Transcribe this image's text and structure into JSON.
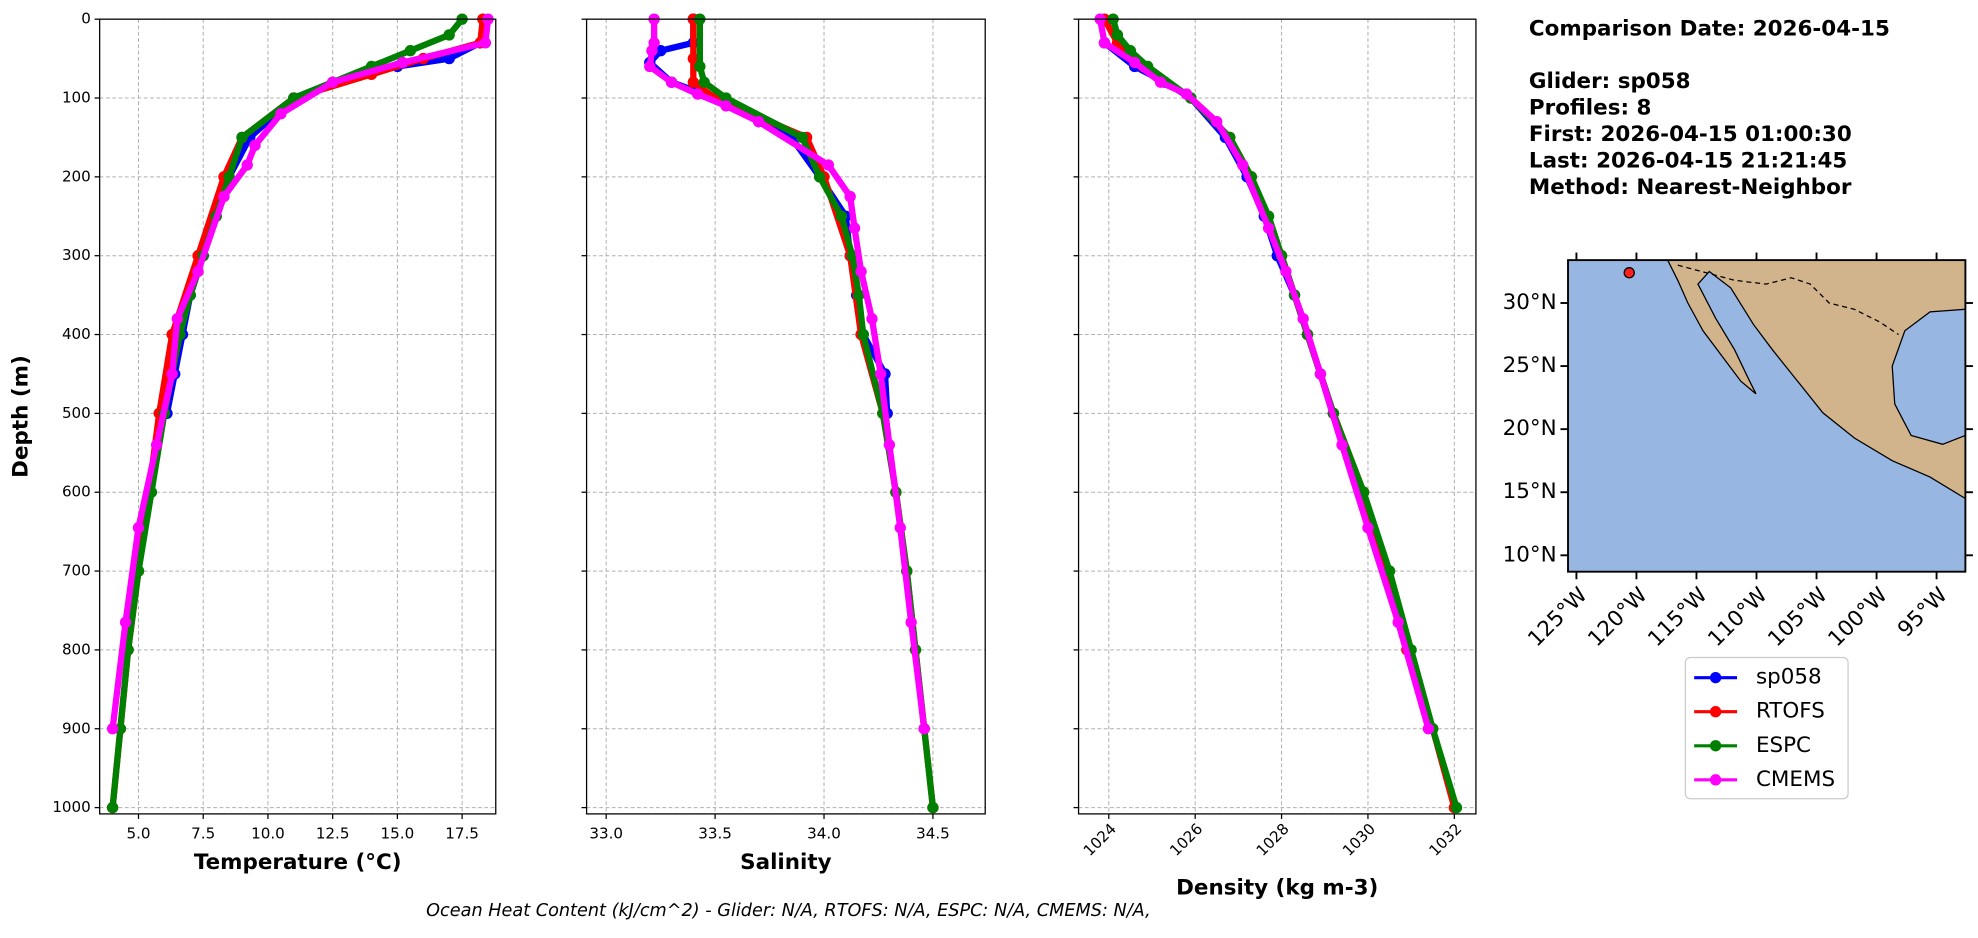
{
  "chart_data": [
    {
      "type": "line",
      "xlabel": "Temperature (°C)",
      "ylabel": "Depth (m)",
      "show_ytick_labels": true,
      "invert_y": true,
      "grid": true,
      "xlim": [
        3.5,
        18.8
      ],
      "ylim": [
        0,
        1008
      ],
      "xticks": [
        {
          "value": 5,
          "label": "5.0"
        },
        7.5,
        {
          "value": 10,
          "label": "10.0"
        },
        12.5,
        {
          "value": 15,
          "label": "15.0"
        },
        17.5
      ],
      "yticks": [
        0,
        100,
        200,
        300,
        400,
        500,
        600,
        700,
        800,
        900,
        1000
      ],
      "series": [
        {
          "color": "#0000ff",
          "x": [
            18.2,
            17,
            15,
            12.5,
            11,
            9.3,
            8.5,
            8,
            7.5,
            7,
            6.7,
            6.4,
            6.1
          ],
          "y": [
            30,
            50,
            60,
            80,
            100,
            150,
            200,
            250,
            300,
            350,
            400,
            450,
            500
          ]
        },
        {
          "color": "#ff0000",
          "x": [
            18.3,
            18.2,
            16,
            14,
            11,
            9,
            8.3,
            7.3,
            6.3,
            5.8,
            5.4,
            5.0,
            4.6,
            4.3,
            4.0
          ],
          "y": [
            0,
            30,
            50,
            70,
            100,
            150,
            200,
            300,
            400,
            500,
            600,
            700,
            800,
            900,
            1000
          ]
        },
        {
          "color": "#008000",
          "x": [
            17.5,
            17,
            15.5,
            14,
            11,
            9,
            8.5,
            8,
            7.5,
            7,
            6.6,
            6,
            5.5,
            5,
            4.6,
            4.3,
            4.0
          ],
          "y": [
            0,
            20,
            40,
            60,
            100,
            150,
            200,
            250,
            300,
            350,
            400,
            500,
            600,
            700,
            800,
            900,
            1000
          ]
        },
        {
          "color": "#ff00ff",
          "x": [
            18.5,
            18.4,
            15.2,
            12.5,
            10.5,
            9.5,
            9.2,
            8.3,
            7.3,
            6.5,
            6.3,
            5.7,
            5.0,
            4.5,
            4.0
          ],
          "y": [
            0,
            30,
            55,
            80,
            120,
            160,
            185,
            225,
            320,
            380,
            450,
            540,
            645,
            765,
            900
          ]
        }
      ]
    },
    {
      "type": "line",
      "xlabel": "Salinity",
      "show_ytick_labels": false,
      "invert_y": true,
      "grid": true,
      "xlim": [
        32.91,
        34.74
      ],
      "ylim": [
        0,
        1008
      ],
      "xticks": [
        {
          "value": 33,
          "label": "33.0"
        },
        33.5,
        {
          "value": 34,
          "label": "34.0"
        },
        34.5
      ],
      "yticks": [
        0,
        100,
        200,
        300,
        400,
        500,
        600,
        700,
        800,
        900,
        1000
      ],
      "series": [
        {
          "color": "#0000ff",
          "x": [
            33.4,
            33.4,
            33.25,
            33.2,
            33.3,
            33.5,
            33.7,
            33.85,
            33.98,
            34.1,
            34.12,
            34.15,
            34.18,
            34.28,
            34.29
          ],
          "y": [
            0,
            30,
            40,
            55,
            80,
            100,
            130,
            150,
            200,
            250,
            300,
            350,
            400,
            450,
            500
          ]
        },
        {
          "color": "#ff0000",
          "x": [
            33.4,
            33.4,
            33.4,
            33.5,
            33.92,
            34.0,
            34.12,
            34.17,
            34.27,
            34.33,
            34.38,
            34.42,
            34.46,
            34.5
          ],
          "y": [
            0,
            50,
            80,
            100,
            150,
            200,
            300,
            400,
            500,
            600,
            700,
            800,
            900,
            1000
          ]
        },
        {
          "color": "#008000",
          "x": [
            33.43,
            33.43,
            33.45,
            33.55,
            33.9,
            33.98,
            34.08,
            34.13,
            34.16,
            34.18,
            34.27,
            34.33,
            34.38,
            34.42,
            34.46,
            34.5
          ],
          "y": [
            0,
            60,
            80,
            100,
            150,
            200,
            250,
            300,
            350,
            400,
            500,
            600,
            700,
            800,
            900,
            1000
          ]
        },
        {
          "color": "#ff00ff",
          "x": [
            33.22,
            33.22,
            33.21,
            33.2,
            33.3,
            33.42,
            33.55,
            33.7,
            34.02,
            34.12,
            34.14,
            34.17,
            34.22,
            34.26,
            34.3,
            34.35,
            34.4,
            34.46
          ],
          "y": [
            0,
            30,
            40,
            60,
            80,
            95,
            110,
            130,
            185,
            225,
            265,
            320,
            380,
            450,
            540,
            645,
            765,
            900
          ]
        }
      ]
    },
    {
      "type": "line",
      "xlabel": "Density (kg m-3)",
      "show_ytick_labels": false,
      "invert_y": true,
      "grid": true,
      "rotate_xtick_labels": true,
      "xlim": [
        1023.3,
        1032.5
      ],
      "ylim": [
        0,
        1008
      ],
      "xticks": [
        1024,
        1026,
        1028,
        1030,
        1032
      ],
      "yticks": [
        0,
        100,
        200,
        300,
        400,
        500,
        600,
        700,
        800,
        900,
        1000
      ],
      "series": [
        {
          "color": "#0000ff",
          "x": [
            1023.9,
            1024.6,
            1025.3,
            1025.9,
            1026.7,
            1027.2,
            1027.6,
            1027.9,
            1028.3,
            1028.6,
            1028.9,
            1029.2
          ],
          "y": [
            30,
            60,
            80,
            100,
            150,
            200,
            250,
            300,
            350,
            400,
            450,
            500
          ]
        },
        {
          "color": "#ff0000",
          "x": [
            1023.9,
            1024.2,
            1024.8,
            1025.9,
            1026.8,
            1027.3,
            1028.0,
            1028.6,
            1029.2,
            1029.9,
            1030.4,
            1030.9,
            1031.5,
            1032.0
          ],
          "y": [
            0,
            30,
            60,
            100,
            150,
            200,
            300,
            400,
            500,
            600,
            700,
            800,
            900,
            1000
          ]
        },
        {
          "color": "#008000",
          "x": [
            1024.1,
            1024.2,
            1024.5,
            1024.9,
            1025.9,
            1026.8,
            1027.3,
            1027.7,
            1028.0,
            1028.3,
            1028.6,
            1029.2,
            1029.9,
            1030.5,
            1031.0,
            1031.5,
            1032.05
          ],
          "y": [
            0,
            20,
            40,
            60,
            100,
            150,
            200,
            250,
            300,
            350,
            400,
            500,
            600,
            700,
            800,
            900,
            1000
          ]
        },
        {
          "color": "#ff00ff",
          "x": [
            1023.8,
            1023.9,
            1024.6,
            1025.2,
            1025.8,
            1026.5,
            1027.1,
            1027.7,
            1028.1,
            1028.5,
            1028.9,
            1029.4,
            1030.0,
            1030.7,
            1031.4
          ],
          "y": [
            0,
            30,
            55,
            80,
            95,
            130,
            185,
            265,
            320,
            380,
            450,
            540,
            645,
            765,
            900
          ]
        }
      ]
    }
  ],
  "legend": {
    "entries": [
      {
        "name": "sp058",
        "color": "#0000ff"
      },
      {
        "name": "RTOFS",
        "color": "#ff0000"
      },
      {
        "name": "ESPC",
        "color": "#008000"
      },
      {
        "name": "CMEMS",
        "color": "#ff00ff"
      }
    ]
  },
  "info": [
    "Comparison Date: 2026-04-15",
    "Glider: sp058",
    "Profiles: 8",
    "First: 2026-04-15 01:00:30",
    "Last: 2026-04-15 21:21:45",
    "Method: Nearest-Neighbor"
  ],
  "map": {
    "xlim": [
      -125.7,
      -92.6
    ],
    "ylim": [
      8.7,
      33.4
    ],
    "xticks": [
      {
        "value": -125,
        "label": "125°W"
      },
      {
        "value": -120,
        "label": "120°W"
      },
      {
        "value": -115,
        "label": "115°W"
      },
      {
        "value": -110,
        "label": "110°W"
      },
      {
        "value": -105,
        "label": "105°W"
      },
      {
        "value": -100,
        "label": "100°W"
      },
      {
        "value": -95,
        "label": "95°W"
      }
    ],
    "yticks": [
      {
        "value": 10,
        "label": "10°N"
      },
      {
        "value": 15,
        "label": "15°N"
      },
      {
        "value": 20,
        "label": "20°N"
      },
      {
        "value": 25,
        "label": "25°N"
      },
      {
        "value": 30,
        "label": "30°N"
      }
    ],
    "glider": {
      "lon": -120.6,
      "lat": 32.4
    }
  },
  "footer": "Ocean Heat Content (kJ/cm^2) - Glider: N/A,  RTOFS: N/A,  ESPC: N/A,  CMEMS: N/A,"
}
